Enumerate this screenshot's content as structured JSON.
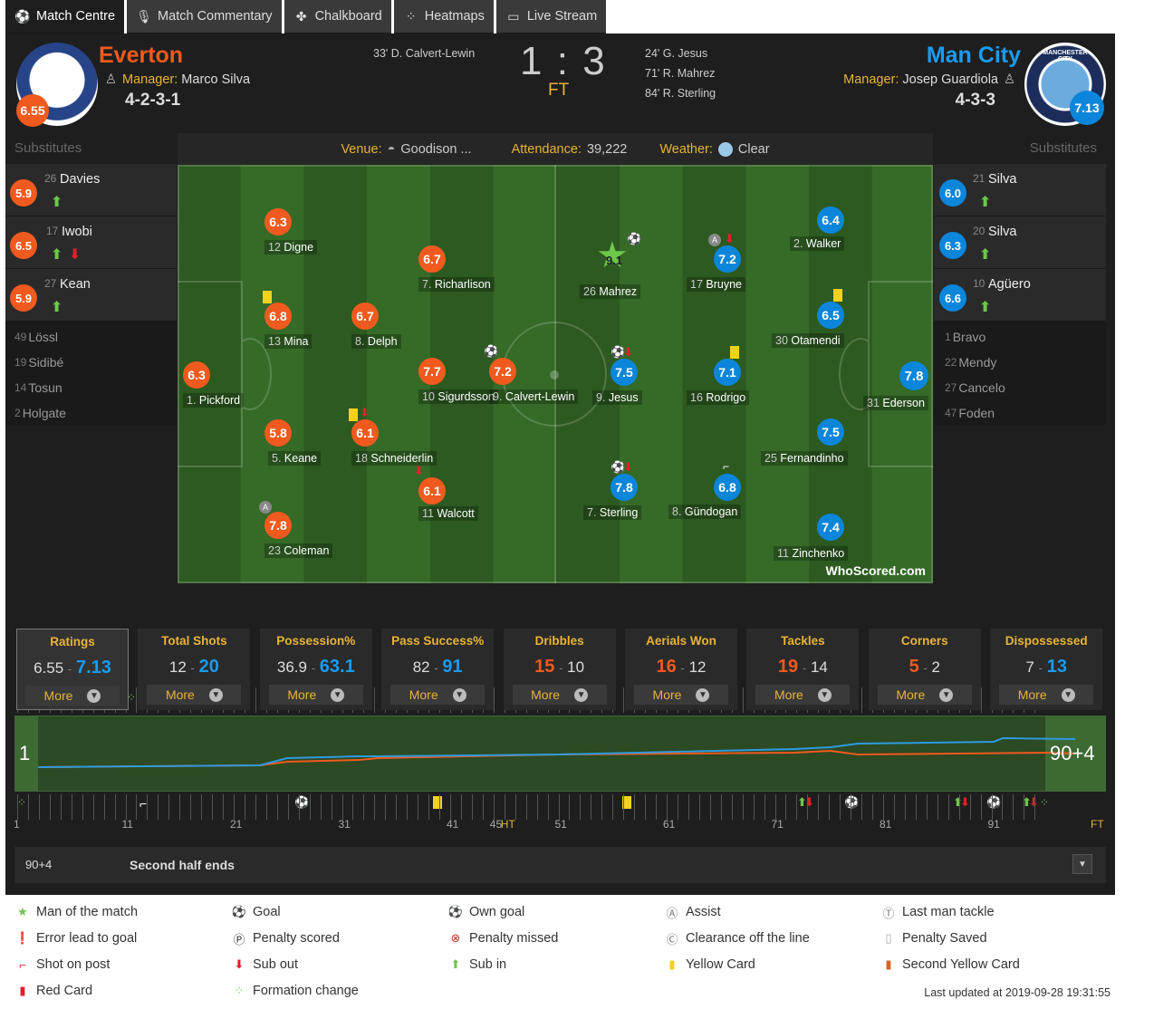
{
  "tabs": [
    {
      "label": "Match Centre",
      "icon": "soccer-ball-icon"
    },
    {
      "label": "Match Commentary",
      "icon": "microphone-icon"
    },
    {
      "label": "Chalkboard",
      "icon": "chalkboard-icon"
    },
    {
      "label": "Heatmaps",
      "icon": "heatmap-icon"
    },
    {
      "label": "Live Stream",
      "icon": "monitor-icon"
    }
  ],
  "home": {
    "name": "Everton",
    "manager_label": "Manager:",
    "manager": "Marco Silva",
    "formation": "4-2-3-1",
    "rating": "6.55",
    "scorers": [
      "33' D. Calvert-Lewin"
    ],
    "crest_text": "Everton",
    "color": "#f05a1e"
  },
  "away": {
    "name": "Man City",
    "manager_label": "Manager:",
    "manager": "Josep Guardiola",
    "formation": "4-3-3",
    "rating": "7.13",
    "scorers": [
      "24' G. Jesus",
      "71' R. Mahrez",
      "84' R. Sterling"
    ],
    "crest_text": "MANCHESTER CITY",
    "color": "#0b86da"
  },
  "score": {
    "home": "1",
    "sep": ":",
    "away": "3",
    "status": "FT"
  },
  "substitutes_label": "Substitutes",
  "home_subs": [
    {
      "rating": "5.9",
      "num": "26",
      "name": "Davies",
      "in": true,
      "out": false
    },
    {
      "rating": "6.5",
      "num": "17",
      "name": "Iwobi",
      "in": true,
      "out": true
    },
    {
      "rating": "5.9",
      "num": "27",
      "name": "Kean",
      "in": true,
      "out": false
    }
  ],
  "home_bench": [
    {
      "num": "49",
      "name": "Lössl"
    },
    {
      "num": "19",
      "name": "Sidibé"
    },
    {
      "num": "14",
      "name": "Tosun"
    },
    {
      "num": "2",
      "name": "Holgate"
    }
  ],
  "away_subs": [
    {
      "rating": "6.0",
      "num": "21",
      "name": "Silva",
      "in": true
    },
    {
      "rating": "6.3",
      "num": "20",
      "name": "Silva",
      "in": true
    },
    {
      "rating": "6.6",
      "num": "10",
      "name": "Agüero",
      "in": true
    }
  ],
  "away_bench": [
    {
      "num": "1",
      "name": "Bravo"
    },
    {
      "num": "22",
      "name": "Mendy"
    },
    {
      "num": "27",
      "name": "Cancelo"
    },
    {
      "num": "47",
      "name": "Foden"
    }
  ],
  "info": {
    "venue_label": "Venue:",
    "venue": "Goodison ...",
    "attendance_label": "Attendance:",
    "attendance": "39,222",
    "weather_label": "Weather:",
    "weather": "Clear"
  },
  "home_players": [
    {
      "rating": "6.3",
      "num": "1.",
      "name": "Pickford"
    },
    {
      "rating": "6.3",
      "num": "12",
      "name": "Digne"
    },
    {
      "rating": "6.8",
      "num": "13",
      "name": "Mina"
    },
    {
      "rating": "5.8",
      "num": "5.",
      "name": "Keane"
    },
    {
      "rating": "7.8",
      "num": "23",
      "name": "Coleman"
    },
    {
      "rating": "6.7",
      "num": "8.",
      "name": "Delph"
    },
    {
      "rating": "6.1",
      "num": "18",
      "name": "Schneiderlin"
    },
    {
      "rating": "6.7",
      "num": "7.",
      "name": "Richarlison"
    },
    {
      "rating": "7.7",
      "num": "10",
      "name": "Sigurdsson"
    },
    {
      "rating": "6.1",
      "num": "11",
      "name": "Walcott"
    },
    {
      "rating": "7.2",
      "num": "9.",
      "name": "Calvert-Lewin"
    }
  ],
  "away_players": [
    {
      "rating": "9.1",
      "num": "26",
      "name": "Mahrez"
    },
    {
      "rating": "7.5",
      "num": "9.",
      "name": "Jesus"
    },
    {
      "rating": "7.8",
      "num": "7.",
      "name": "Sterling"
    },
    {
      "rating": "7.2",
      "num": "17",
      "name": "Bruyne"
    },
    {
      "rating": "7.1",
      "num": "16",
      "name": "Rodrigo"
    },
    {
      "rating": "6.8",
      "num": "8.",
      "name": "Gündogan"
    },
    {
      "rating": "6.4",
      "num": "2.",
      "name": "Walker"
    },
    {
      "rating": "6.5",
      "num": "30",
      "name": "Otamendi"
    },
    {
      "rating": "7.5",
      "num": "25",
      "name": "Fernandinho"
    },
    {
      "rating": "7.4",
      "num": "11",
      "name": "Zinchenko"
    },
    {
      "rating": "7.8",
      "num": "31",
      "name": "Ederson"
    }
  ],
  "watermark": "WhoScored.com",
  "stats": [
    {
      "title": "Ratings",
      "home": "6.55",
      "away": "7.13",
      "lead": "away",
      "more": "More"
    },
    {
      "title": "Total Shots",
      "home": "12",
      "away": "20",
      "lead": "away",
      "more": "More"
    },
    {
      "title": "Possession%",
      "home": "36.9",
      "away": "63.1",
      "lead": "away",
      "more": "More"
    },
    {
      "title": "Pass Success%",
      "home": "82",
      "away": "91",
      "lead": "away",
      "more": "More"
    },
    {
      "title": "Dribbles",
      "home": "15",
      "away": "10",
      "lead": "home",
      "more": "More"
    },
    {
      "title": "Aerials Won",
      "home": "16",
      "away": "12",
      "lead": "home",
      "more": "More"
    },
    {
      "title": "Tackles",
      "home": "19",
      "away": "14",
      "lead": "home",
      "more": "More"
    },
    {
      "title": "Corners",
      "home": "5",
      "away": "2",
      "lead": "home",
      "more": "More"
    },
    {
      "title": "Dispossessed",
      "home": "7",
      "away": "13",
      "lead": "away",
      "more": "More"
    }
  ],
  "timeline": {
    "start": "1",
    "end": "90+4",
    "ticks": [
      "1",
      "11",
      "21",
      "31",
      "41",
      "45",
      "51",
      "61",
      "71",
      "81",
      "91"
    ],
    "ht": "HT",
    "ft": "FT"
  },
  "commentary": {
    "minute": "90+4",
    "text": "Second half ends"
  },
  "legend": [
    {
      "icon": "star-icon",
      "label": "Man of the match"
    },
    {
      "icon": "goal-icon",
      "label": "Goal"
    },
    {
      "icon": "own-goal-icon",
      "label": "Own goal"
    },
    {
      "icon": "assist-icon",
      "label": "Assist"
    },
    {
      "icon": "last-man-tackle-icon",
      "label": "Last man tackle"
    },
    {
      "icon": "error-icon",
      "label": "Error lead to goal"
    },
    {
      "icon": "penalty-scored-icon",
      "label": "Penalty scored"
    },
    {
      "icon": "penalty-missed-icon",
      "label": "Penalty missed"
    },
    {
      "icon": "clearance-icon",
      "label": "Clearance off the line"
    },
    {
      "icon": "penalty-saved-icon",
      "label": "Penalty Saved"
    },
    {
      "icon": "shot-on-post-icon",
      "label": "Shot on post"
    },
    {
      "icon": "sub-out-icon",
      "label": "Sub out"
    },
    {
      "icon": "sub-in-icon",
      "label": "Sub in"
    },
    {
      "icon": "yellow-card-icon",
      "label": "Yellow Card"
    },
    {
      "icon": "second-yellow-icon",
      "label": "Second Yellow Card"
    },
    {
      "icon": "red-card-icon",
      "label": "Red Card"
    },
    {
      "icon": "formation-change-icon",
      "label": "Formation change"
    }
  ],
  "last_updated": "Last updated at 2019-09-28 19:31:55"
}
